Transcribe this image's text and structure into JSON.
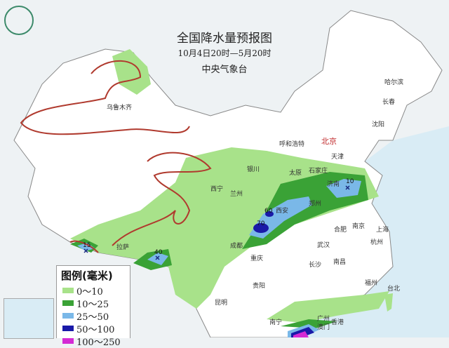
{
  "header": {
    "title": "全国降水量预报图",
    "period": "10月4日20时—5月20时",
    "issuer": "中央气象台"
  },
  "logo": {
    "icon": "cma-logo-icon"
  },
  "legend": {
    "title": "图例(毫米)",
    "items": [
      {
        "label": "0～10",
        "color": "#a8e28a"
      },
      {
        "label": "10～25",
        "color": "#3aa236"
      },
      {
        "label": "25～50",
        "color": "#7ab8e8"
      },
      {
        "label": "50～100",
        "color": "#1a1aa8"
      },
      {
        "label": "100～250",
        "color": "#d42ad4"
      }
    ]
  },
  "cities": [
    {
      "name": "乌鲁木齐"
    },
    {
      "name": "哈尔滨"
    },
    {
      "name": "长春"
    },
    {
      "name": "沈阳"
    },
    {
      "name": "呼和浩特"
    },
    {
      "name": "北京"
    },
    {
      "name": "天津"
    },
    {
      "name": "石家庄"
    },
    {
      "name": "太原"
    },
    {
      "name": "银川"
    },
    {
      "name": "西宁"
    },
    {
      "name": "兰州"
    },
    {
      "name": "济南"
    },
    {
      "name": "郑州"
    },
    {
      "name": "西安"
    },
    {
      "name": "合肥"
    },
    {
      "name": "南京"
    },
    {
      "name": "上海"
    },
    {
      "name": "杭州"
    },
    {
      "name": "武汉"
    },
    {
      "name": "成都"
    },
    {
      "name": "重庆"
    },
    {
      "name": "拉萨"
    },
    {
      "name": "贵阳"
    },
    {
      "name": "长沙"
    },
    {
      "name": "南昌"
    },
    {
      "name": "福州"
    },
    {
      "name": "台北"
    },
    {
      "name": "昆明"
    },
    {
      "name": "南宁"
    },
    {
      "name": "广州"
    },
    {
      "name": "香港"
    },
    {
      "name": "澳门"
    }
  ],
  "max_values": [
    "15",
    "40",
    "60",
    "70",
    "10"
  ],
  "colors": {
    "sea": "#d9ecf5",
    "land": "#ffffff",
    "frost_line": "#b03a2e"
  }
}
